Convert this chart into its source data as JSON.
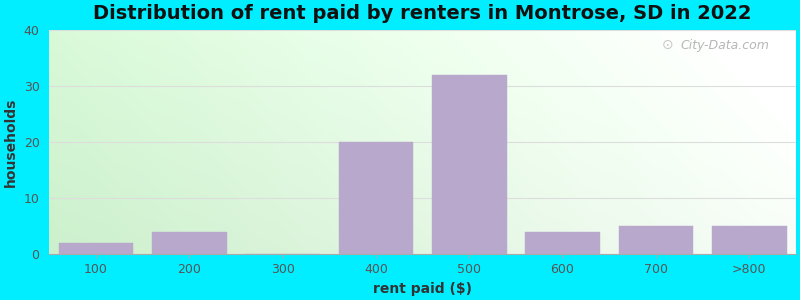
{
  "title": "Distribution of rent paid by renters in Montrose, SD in 2022",
  "xlabel": "rent paid ($)",
  "ylabel": "households",
  "categories": [
    "100",
    "200",
    "300",
    "400",
    "500",
    "600",
    "700",
    ">800"
  ],
  "values": [
    2,
    4,
    0,
    20,
    32,
    4,
    5,
    5
  ],
  "bar_color": "#b8a8cc",
  "bar_edgecolor": "#b8a8cc",
  "ylim": [
    0,
    40
  ],
  "yticks": [
    0,
    10,
    20,
    30,
    40
  ],
  "grid_color": "#dddddd",
  "bg_color_topleft": "#d8f0d8",
  "bg_color_topright": "#f8f8f8",
  "bg_color_bottomleft": "#c8eec8",
  "bg_color_bottomright": "#f0f8f0",
  "outer_bg": "#00eeff",
  "title_fontsize": 14,
  "axis_label_fontsize": 10,
  "tick_fontsize": 9,
  "watermark_text": "City-Data.com",
  "bar_width": 0.8
}
